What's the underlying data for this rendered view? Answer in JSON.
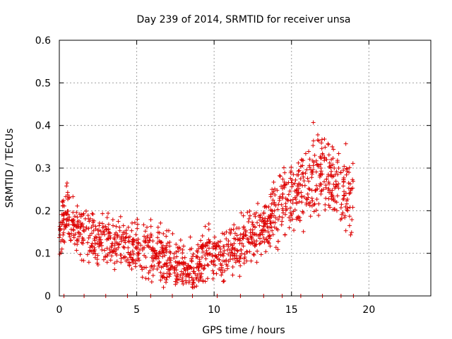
{
  "chart_data": {
    "type": "scatter",
    "title": "Day 239 of 2014, SRMTID for receiver unsa",
    "xlabel": "GPS time / hours",
    "ylabel": "SRMTID / TECUs",
    "xlim": [
      0,
      24
    ],
    "ylim": [
      0,
      0.6
    ],
    "xticks": [
      0,
      5,
      10,
      15,
      20
    ],
    "yticks": [
      0,
      0.1,
      0.2,
      0.3,
      0.4,
      0.5,
      0.6
    ],
    "xtick_labels": [
      "0",
      "5",
      "10",
      "15",
      "20"
    ],
    "ytick_labels": [
      "0",
      "0.1",
      "0.2",
      "0.3",
      "0.4",
      "0.5",
      "0.6"
    ],
    "grid": true,
    "marker": "+",
    "color": "#dd0000",
    "time_range": [
      0,
      19
    ],
    "series": [
      {
        "name": "SRMTID",
        "x": [],
        "y": []
      }
    ],
    "trend": [
      {
        "x": 0.0,
        "y": 0.16
      },
      {
        "x": 0.5,
        "y": 0.19
      },
      {
        "x": 1.0,
        "y": 0.16
      },
      {
        "x": 2.0,
        "y": 0.14
      },
      {
        "x": 3.0,
        "y": 0.13
      },
      {
        "x": 4.0,
        "y": 0.12
      },
      {
        "x": 5.0,
        "y": 0.11
      },
      {
        "x": 6.0,
        "y": 0.1
      },
      {
        "x": 7.0,
        "y": 0.09
      },
      {
        "x": 8.0,
        "y": 0.065
      },
      {
        "x": 8.8,
        "y": 0.06
      },
      {
        "x": 9.5,
        "y": 0.1
      },
      {
        "x": 10.5,
        "y": 0.1
      },
      {
        "x": 11.5,
        "y": 0.12
      },
      {
        "x": 12.5,
        "y": 0.14
      },
      {
        "x": 13.5,
        "y": 0.17
      },
      {
        "x": 14.0,
        "y": 0.21
      },
      {
        "x": 15.0,
        "y": 0.24
      },
      {
        "x": 16.0,
        "y": 0.26
      },
      {
        "x": 17.0,
        "y": 0.3
      },
      {
        "x": 18.0,
        "y": 0.26
      },
      {
        "x": 19.0,
        "y": 0.22
      }
    ],
    "zero_markers_x": [
      0.3,
      1.6,
      3.0,
      4.4,
      5.9,
      7.3,
      8.6,
      10.2,
      11.7,
      13.2,
      14.4,
      15.6,
      17.0,
      18.2,
      19.0
    ]
  }
}
